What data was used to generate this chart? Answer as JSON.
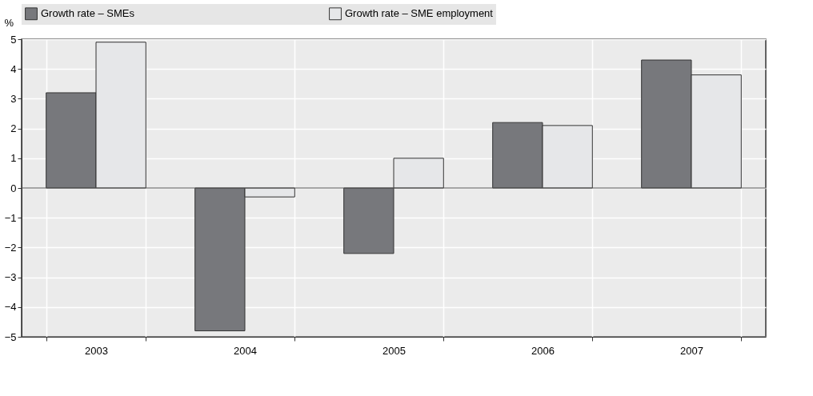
{
  "chart_data": {
    "type": "bar",
    "ylabel": "%",
    "categories": [
      "2003",
      "2004",
      "2005",
      "2006",
      "2007"
    ],
    "series": [
      {
        "name": "Growth rate – SMEs",
        "color": "#77787c",
        "values": [
          3.2,
          -4.8,
          -2.2,
          2.2,
          4.3
        ]
      },
      {
        "name": "Growth rate – SME employment",
        "color": "#e6e7e9",
        "values": [
          4.9,
          -0.3,
          1.0,
          2.1,
          3.8
        ]
      }
    ],
    "ylim": [
      -5,
      5
    ],
    "yticks": [
      -5,
      -4,
      -3,
      -2,
      -1,
      0,
      1,
      2,
      3,
      4,
      5
    ],
    "grid": true,
    "legend": "top"
  }
}
